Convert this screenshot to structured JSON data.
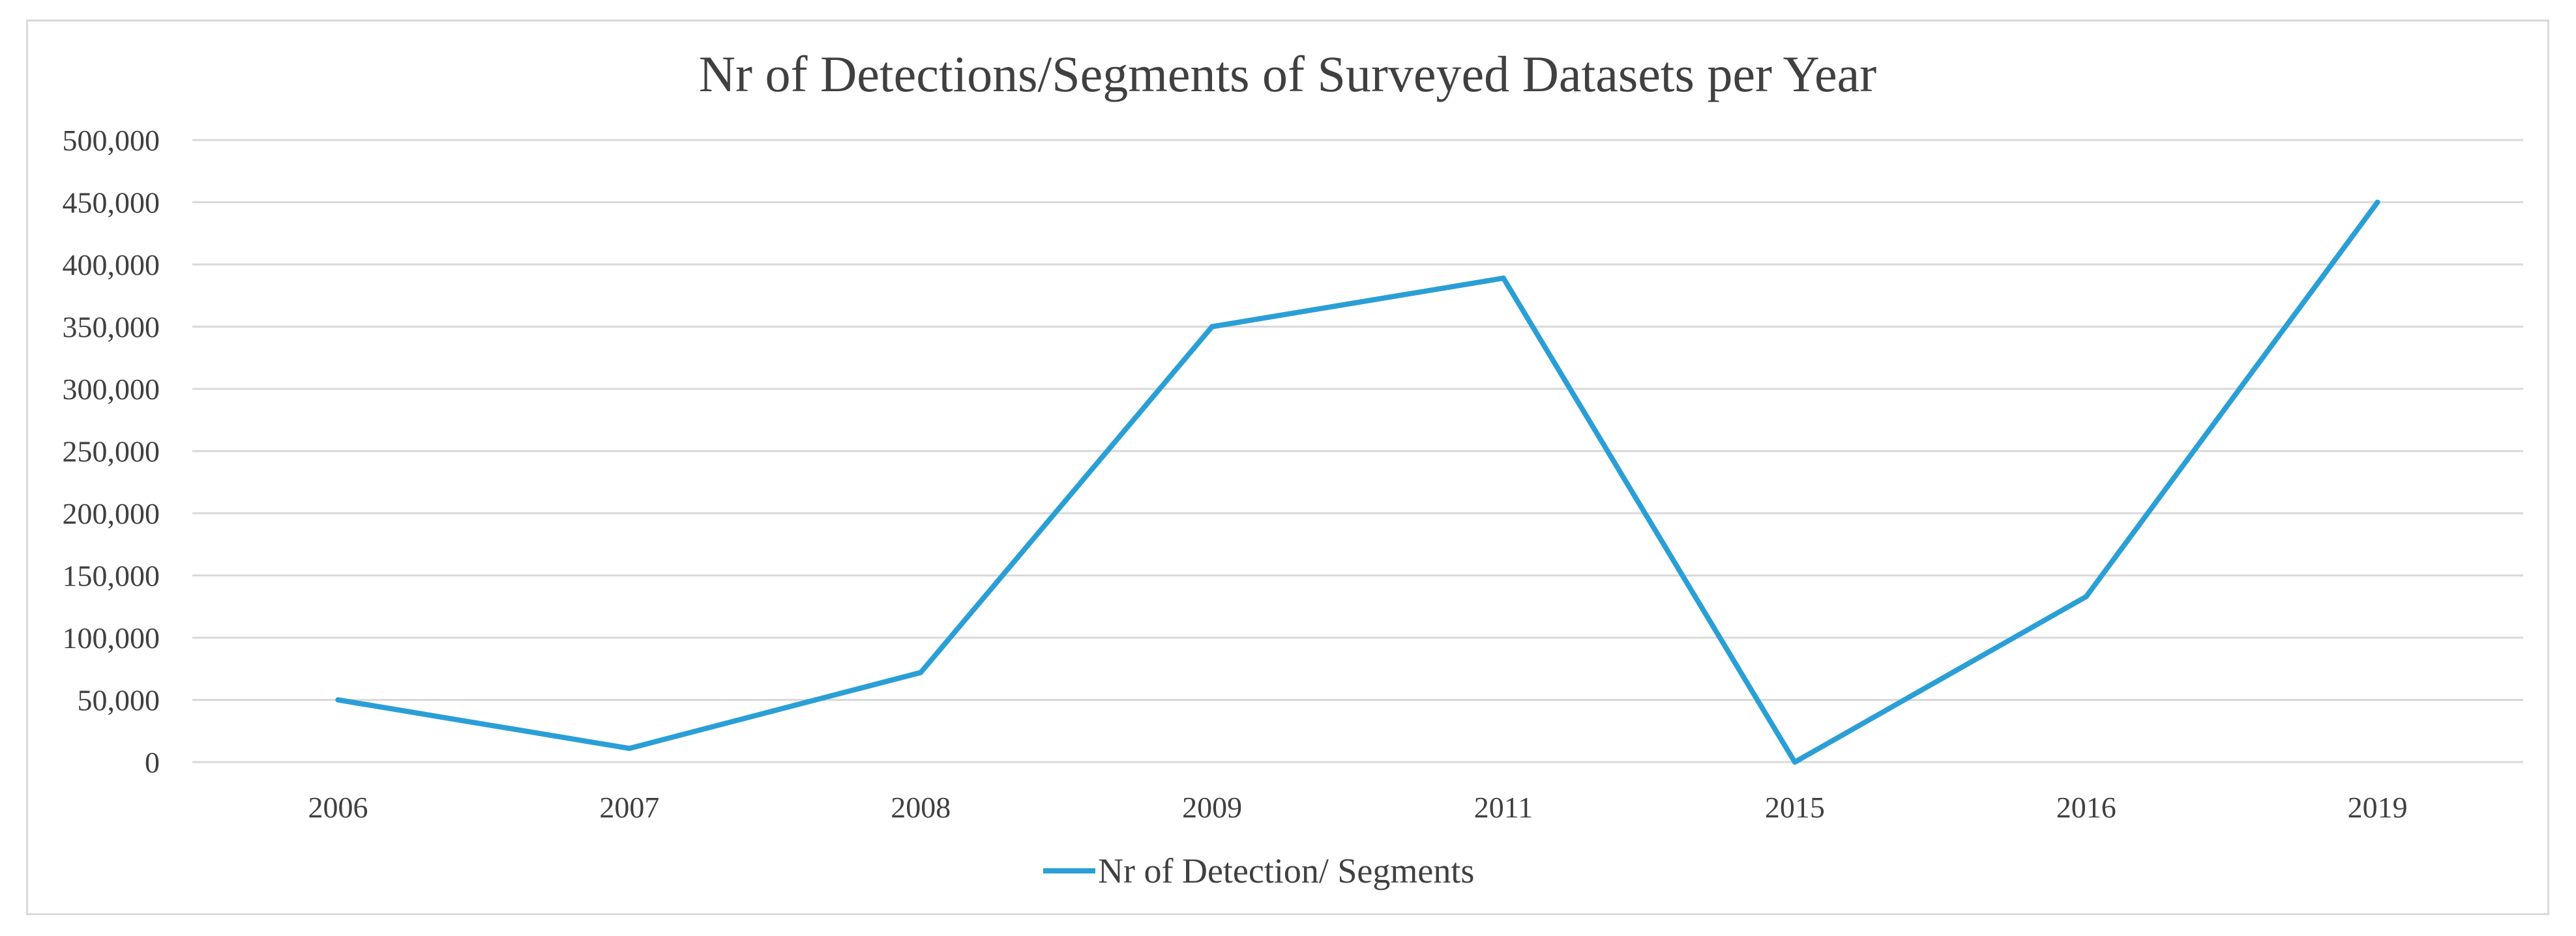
{
  "chart_data": {
    "type": "line",
    "title": "Nr of Detections/Segments of Surveyed Datasets per Year",
    "xlabel": "",
    "ylabel": "",
    "categories": [
      "2006",
      "2007",
      "2008",
      "2009",
      "2011",
      "2015",
      "2016",
      "2019"
    ],
    "ylim": [
      0,
      500000
    ],
    "yticks": [
      0,
      50000,
      100000,
      150000,
      200000,
      250000,
      300000,
      350000,
      400000,
      450000,
      500000
    ],
    "ytick_labels": [
      "0",
      "50,000",
      "100,000",
      "150,000",
      "200,000",
      "250,000",
      "300,000",
      "350,000",
      "400,000",
      "450,000",
      "500,000"
    ],
    "grid": true,
    "legend_position": "bottom",
    "series": [
      {
        "name": "Nr of Detection/ Segments",
        "color": "#2a9fd6",
        "values": [
          50000,
          11000,
          72000,
          350000,
          389000,
          0,
          133000,
          450000
        ]
      }
    ]
  }
}
